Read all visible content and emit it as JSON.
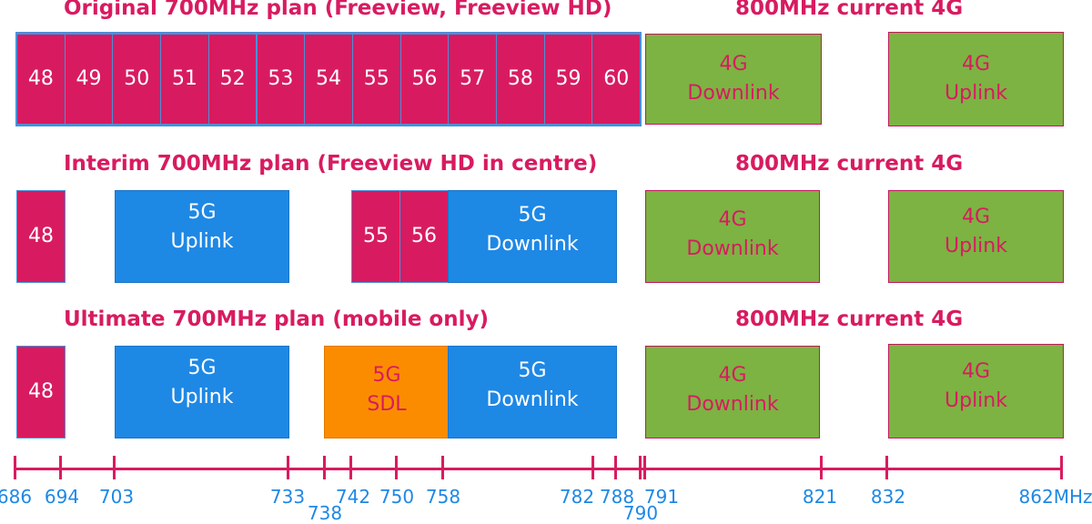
{
  "rows": {
    "original": {
      "title": "Original 700MHz plan (Freeview, Freeview HD)",
      "right_title": "800MHz current 4G",
      "channels": [
        "48",
        "49",
        "50",
        "51",
        "52",
        "53",
        "54",
        "55",
        "56",
        "57",
        "58",
        "59",
        "60"
      ],
      "downlink_4g": "4G\nDownlink",
      "uplink_4g": "4G\nUplink"
    },
    "interim": {
      "title": "Interim 700MHz plan (Freeview HD in centre)",
      "right_title": "800MHz current 4G",
      "ch48": "48",
      "ch55": "55",
      "ch56": "56",
      "uplink_5g": "5G\nUplink",
      "downlink_5g": "5G\nDownlink",
      "downlink_4g": "4G\nDownlink",
      "uplink_4g": "4G\nUplink"
    },
    "ultimate": {
      "title": "Ultimate 700MHz plan (mobile only)",
      "right_title": "800MHz current 4G",
      "ch48": "48",
      "uplink_5g": "5G\nUplink",
      "sdl_5g": "5G\nSDL",
      "downlink_5g": "5G\nDownlink",
      "downlink_4g": "4G\nDownlink",
      "uplink_4g": "4G\nUplink"
    }
  },
  "axis": {
    "ticks": [
      "686",
      "694",
      "703",
      "733",
      "738",
      "742",
      "750",
      "758",
      "782",
      "788",
      "790",
      "791",
      "821",
      "832",
      "862MHz"
    ]
  },
  "colors": {
    "tv_channel": "#d81b60",
    "g5": "#1e88e5",
    "sdl": "#fb8c00",
    "g4": "#7cb342",
    "title": "#d81b60",
    "axis_label": "#1e88e5"
  }
}
